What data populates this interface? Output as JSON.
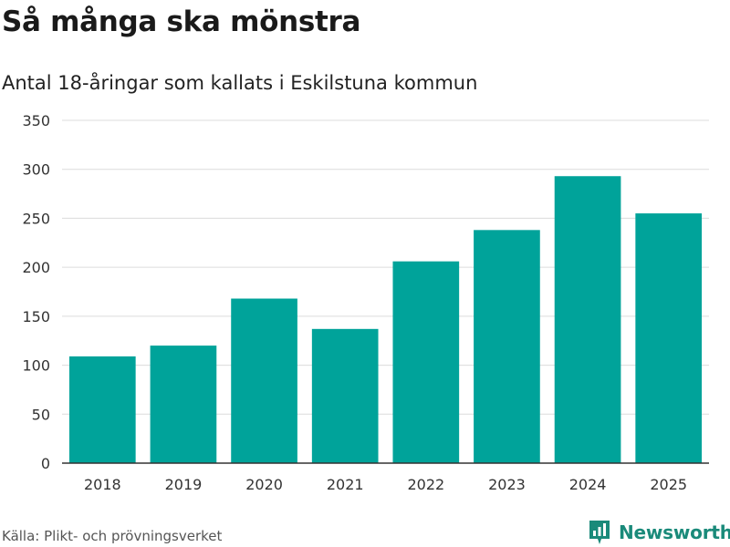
{
  "chart_data": {
    "type": "bar",
    "title": "Så många ska mönstra",
    "subtitle": "Antal 18-åringar som kallats i Eskilstuna kommun",
    "categories": [
      "2018",
      "2019",
      "2020",
      "2021",
      "2022",
      "2023",
      "2024",
      "2025"
    ],
    "values": [
      109,
      120,
      168,
      137,
      206,
      238,
      293,
      255
    ],
    "ylim": [
      0,
      350
    ],
    "yticks": [
      0,
      50,
      100,
      150,
      200,
      250,
      300,
      350
    ],
    "xlabel": "",
    "ylabel": "",
    "grid": true,
    "bar_color": "#00a39a",
    "source": "Källa: Plikt- och prövningsverket"
  },
  "brand": {
    "name": "Newsworthy",
    "icon": "newsworthy-logo-icon",
    "color": "#1a8a7a"
  }
}
